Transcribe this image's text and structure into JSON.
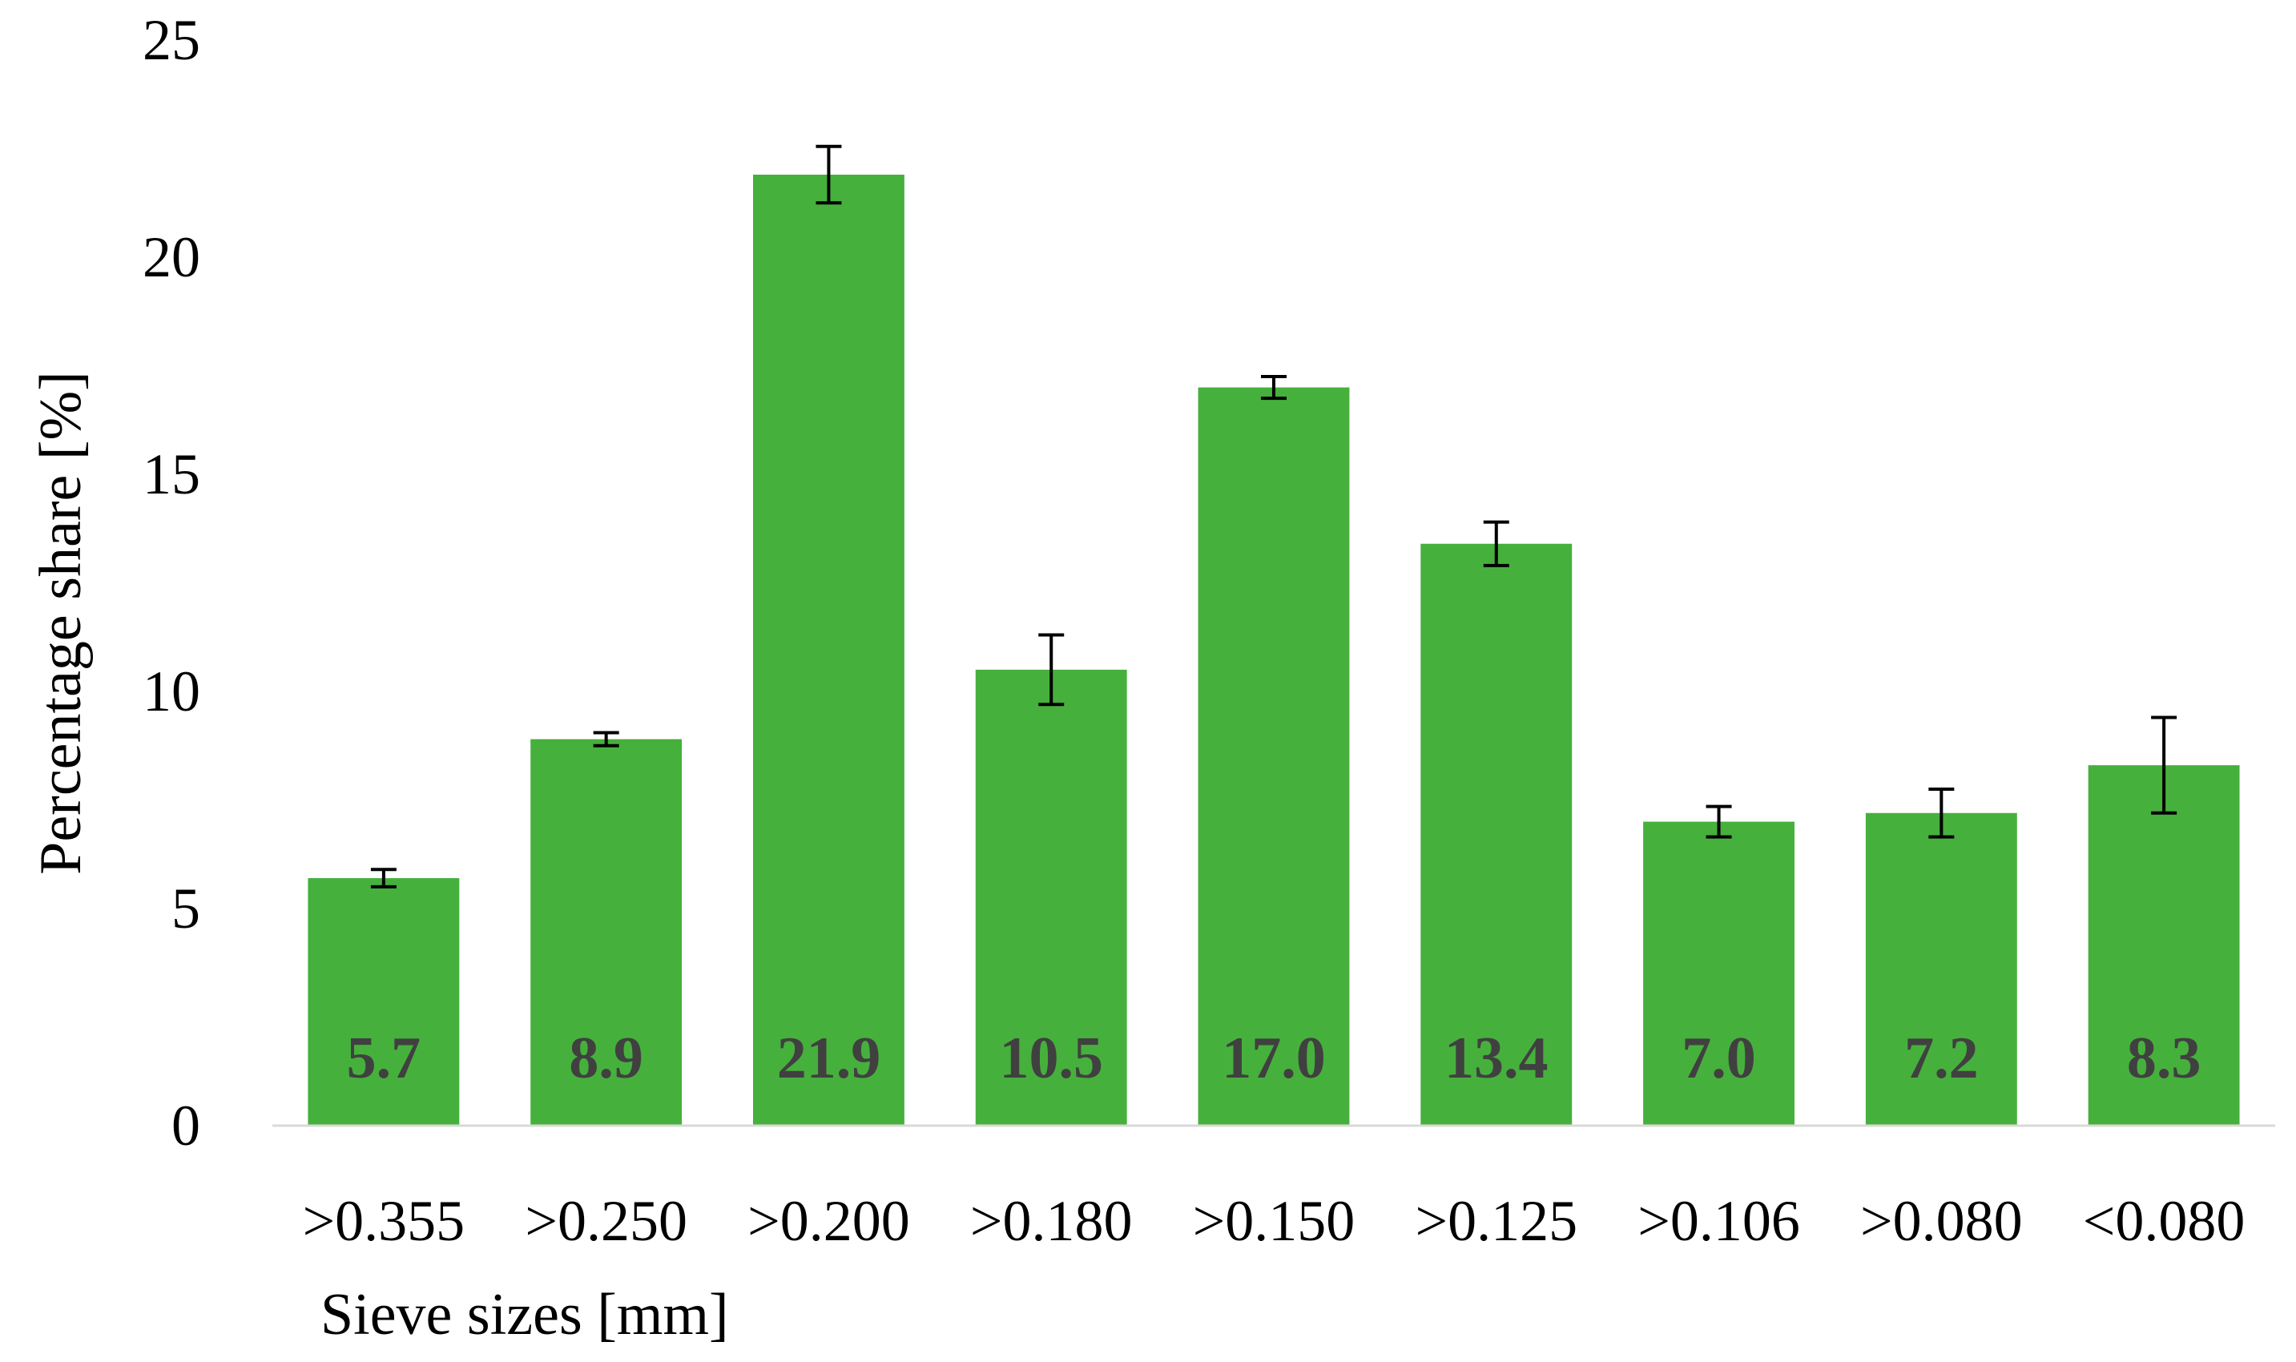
{
  "chart_data": {
    "type": "bar",
    "xlabel": "Sieve sizes [mm]",
    "ylabel": "Percentage share [%]",
    "categories": [
      ">0.355",
      ">0.250",
      ">0.200",
      ">0.180",
      ">0.150",
      ">0.125",
      ">0.106",
      ">0.080",
      "<0.080"
    ],
    "values": [
      5.7,
      8.9,
      21.9,
      10.5,
      17.0,
      13.4,
      7.0,
      7.2,
      8.3
    ],
    "data_labels": [
      "5.7",
      "8.9",
      "21.9",
      "10.5",
      "17.0",
      "13.4",
      "7.0",
      "7.2",
      "8.3"
    ],
    "error": [
      0.2,
      0.15,
      0.65,
      0.8,
      0.25,
      0.5,
      0.35,
      0.55,
      1.1
    ],
    "ylim": [
      0,
      25
    ],
    "yticks": [
      "0",
      "5",
      "10",
      "15",
      "20",
      "25"
    ],
    "grid": false,
    "legend": "none",
    "bar_color": "#46b03c",
    "error_bar_color": "#000000",
    "data_label_color": "#404040"
  }
}
